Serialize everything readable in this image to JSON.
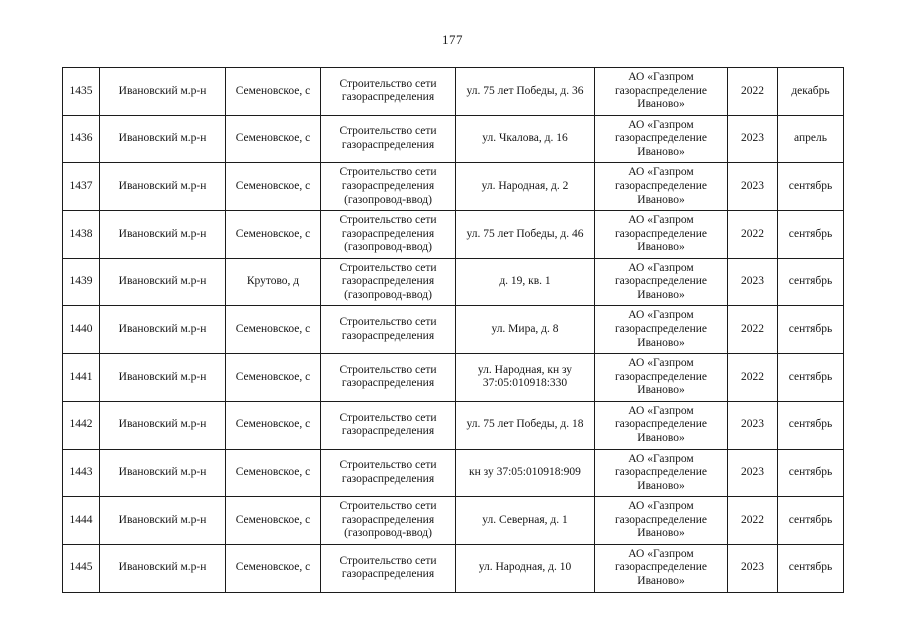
{
  "page": {
    "number": "177"
  },
  "table": {
    "columns": [
      "num",
      "district",
      "settlement",
      "work",
      "address",
      "org",
      "year",
      "month"
    ],
    "rows": [
      [
        "1435",
        "Ивановский м.р-н",
        "Семеновское, с",
        "Строительство сети газораспределения",
        "ул. 75 лет Победы, д. 36",
        "АО «Газпром газораспределение Иваново»",
        "2022",
        "декабрь"
      ],
      [
        "1436",
        "Ивановский м.р-н",
        "Семеновское, с",
        "Строительство сети газораспределения",
        "ул. Чкалова, д. 16",
        "АО «Газпром газораспределение Иваново»",
        "2023",
        "апрель"
      ],
      [
        "1437",
        "Ивановский м.р-н",
        "Семеновское, с",
        "Строительство сети газораспределения (газопровод-ввод)",
        "ул. Народная, д. 2",
        "АО «Газпром газораспределение Иваново»",
        "2023",
        "сентябрь"
      ],
      [
        "1438",
        "Ивановский м.р-н",
        "Семеновское, с",
        "Строительство сети газораспределения (газопровод-ввод)",
        "ул. 75 лет Победы, д. 46",
        "АО «Газпром газораспределение Иваново»",
        "2022",
        "сентябрь"
      ],
      [
        "1439",
        "Ивановский м.р-н",
        "Крутово, д",
        "Строительство сети газораспределения (газопровод-ввод)",
        "д. 19, кв. 1",
        "АО «Газпром газораспределение Иваново»",
        "2023",
        "сентябрь"
      ],
      [
        "1440",
        "Ивановский м.р-н",
        "Семеновское, с",
        "Строительство сети газораспределения",
        "ул. Мира, д. 8",
        "АО «Газпром газораспределение Иваново»",
        "2022",
        "сентябрь"
      ],
      [
        "1441",
        "Ивановский м.р-н",
        "Семеновское, с",
        "Строительство сети газораспределения",
        "ул. Народная, кн зу 37:05:010918:330",
        "АО «Газпром газораспределение Иваново»",
        "2022",
        "сентябрь"
      ],
      [
        "1442",
        "Ивановский м.р-н",
        "Семеновское, с",
        "Строительство сети газораспределения",
        "ул. 75 лет Победы, д. 18",
        "АО «Газпром газораспределение Иваново»",
        "2023",
        "сентябрь"
      ],
      [
        "1443",
        "Ивановский м.р-н",
        "Семеновское, с",
        "Строительство сети газораспределения",
        "кн зу 37:05:010918:909",
        "АО «Газпром газораспределение Иваново»",
        "2023",
        "сентябрь"
      ],
      [
        "1444",
        "Ивановский м.р-н",
        "Семеновское, с",
        "Строительство сети газораспределения (газопровод-ввод)",
        "ул. Северная, д. 1",
        "АО «Газпром газораспределение Иваново»",
        "2022",
        "сентябрь"
      ],
      [
        "1445",
        "Ивановский м.р-н",
        "Семеновское, с",
        "Строительство сети газораспределения",
        "ул. Народная, д. 10",
        "АО «Газпром газораспределение Иваново»",
        "2023",
        "сентябрь"
      ]
    ]
  }
}
